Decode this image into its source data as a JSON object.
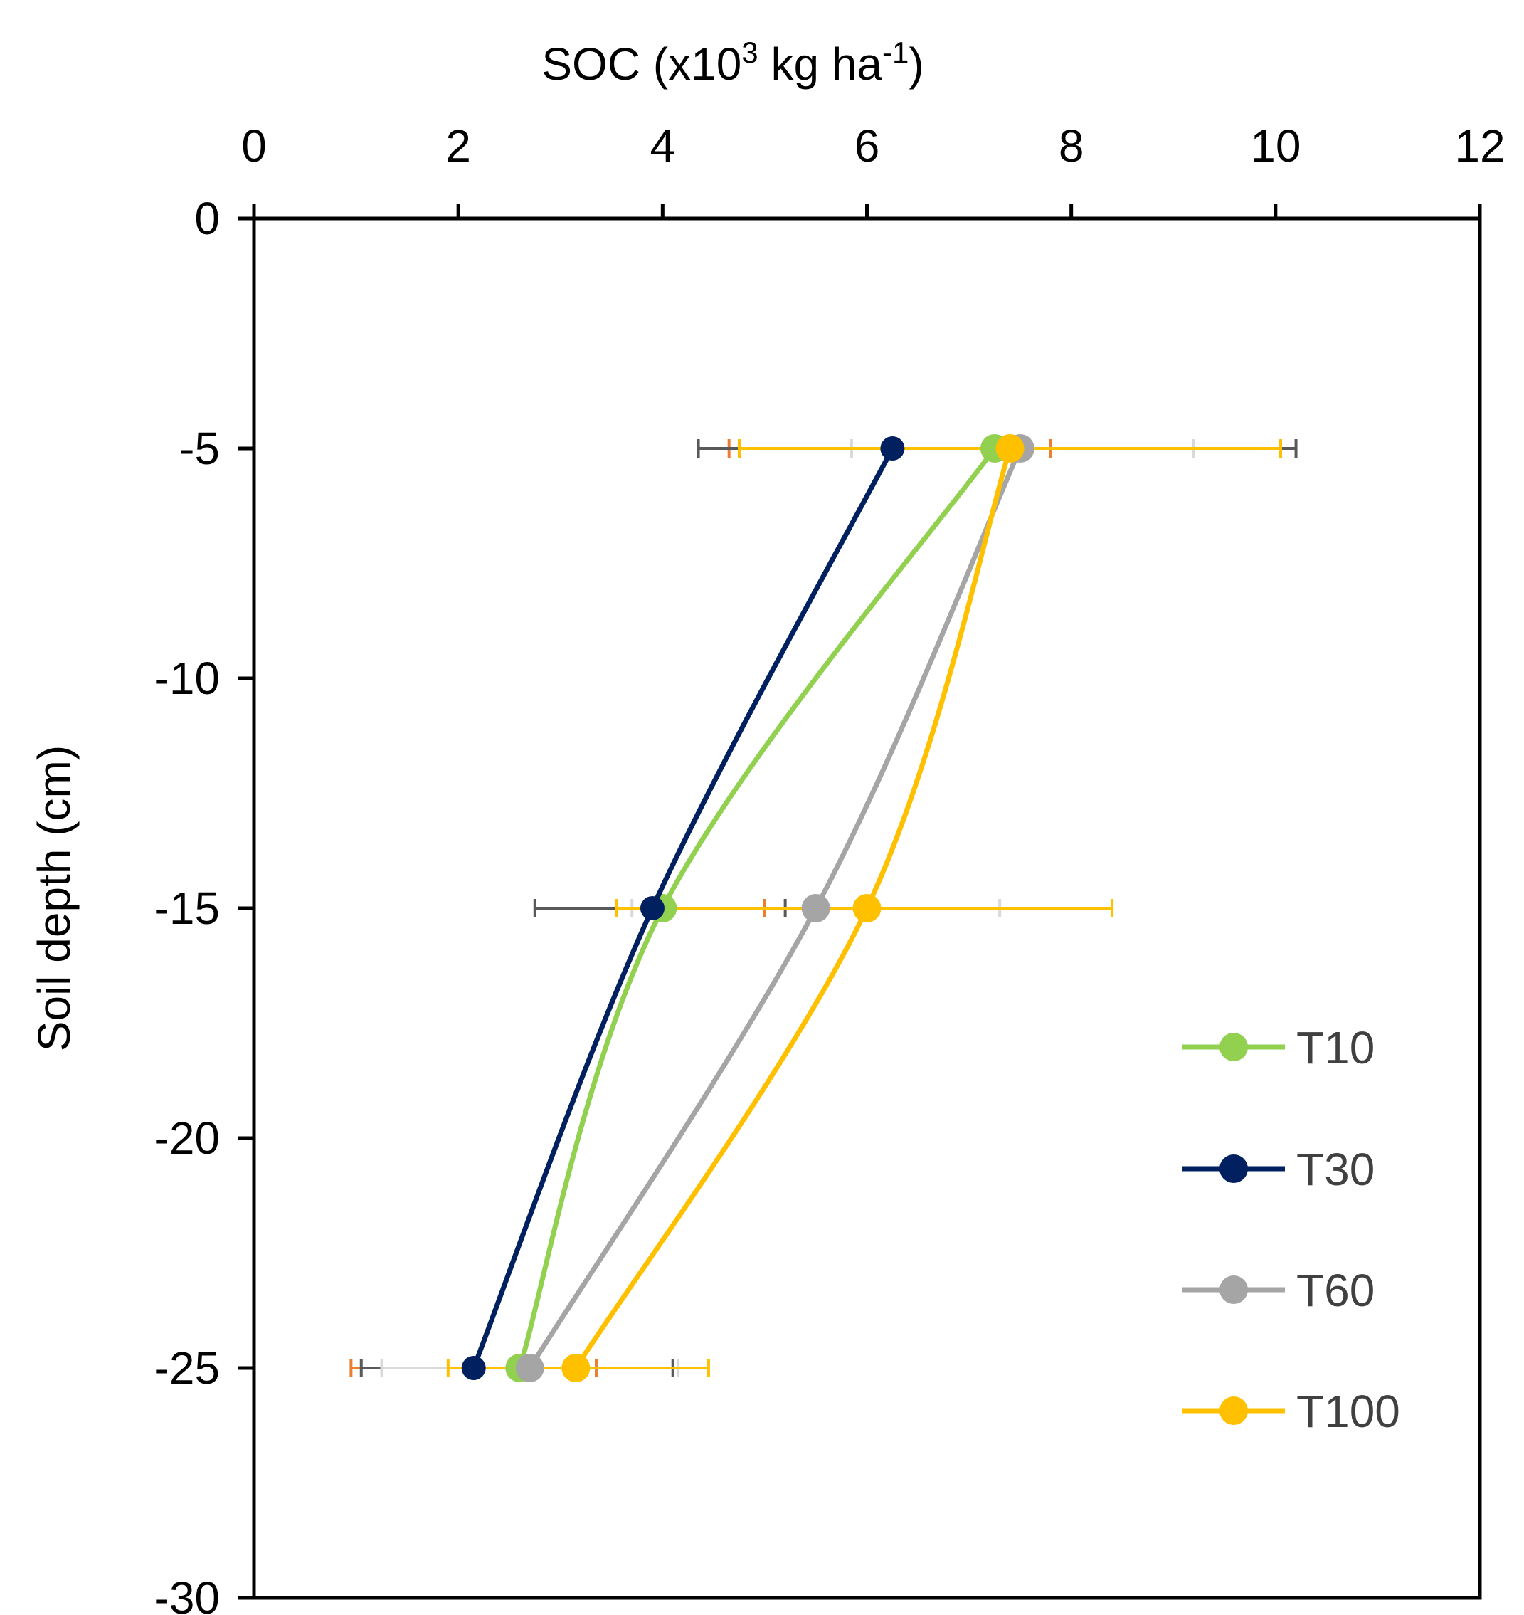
{
  "chart_data": {
    "type": "line",
    "title": "",
    "xlabel": {
      "main": "SOC (x10",
      "sup1": "3",
      "mid": " kg ha",
      "sup2": "-1",
      "end": ")"
    },
    "ylabel": "Soil depth (cm)",
    "xlim": [
      0,
      12
    ],
    "ylim": [
      -30,
      0
    ],
    "x_ticks": [
      0,
      2,
      4,
      6,
      8,
      10,
      12
    ],
    "y_ticks": [
      0,
      -5,
      -10,
      -15,
      -20,
      -25,
      -30
    ],
    "grid": false,
    "legend_position": "right",
    "series": [
      {
        "name": "T10",
        "color": "#92D050",
        "err_color": "#ED7D31",
        "points": [
          {
            "depth": -5,
            "soc": 7.25,
            "err_low": 4.65,
            "err_high": 7.8
          },
          {
            "depth": -15,
            "soc": 4.0,
            "err_low": 2.75,
            "err_high": 5.0
          },
          {
            "depth": -25,
            "soc": 2.6,
            "err_low": 0.95,
            "err_high": 3.35
          }
        ]
      },
      {
        "name": "T30",
        "color": "#002060",
        "err_color": "#595959",
        "points": [
          {
            "depth": -5,
            "soc": 6.25,
            "err_low": 4.35,
            "err_high": 10.2
          },
          {
            "depth": -15,
            "soc": 3.9,
            "err_low": 2.75,
            "err_high": 5.2
          },
          {
            "depth": -25,
            "soc": 2.15,
            "err_low": 1.05,
            "err_high": 4.1
          }
        ]
      },
      {
        "name": "T60",
        "color": "#A5A5A5",
        "err_color": "#D9D9D9",
        "points": [
          {
            "depth": -5,
            "soc": 7.5,
            "err_low": 5.85,
            "err_high": 9.2
          },
          {
            "depth": -15,
            "soc": 5.5,
            "err_low": 3.7,
            "err_high": 7.3
          },
          {
            "depth": -25,
            "soc": 2.7,
            "err_low": 1.25,
            "err_high": 4.15
          }
        ]
      },
      {
        "name": "T100",
        "color": "#FFC000",
        "err_color": "#FFC000",
        "points": [
          {
            "depth": -5,
            "soc": 7.4,
            "err_low": 4.75,
            "err_high": 10.05
          },
          {
            "depth": -15,
            "soc": 6.0,
            "err_low": 3.55,
            "err_high": 8.4
          },
          {
            "depth": -25,
            "soc": 3.15,
            "err_low": 1.9,
            "err_high": 4.45
          }
        ]
      }
    ]
  }
}
